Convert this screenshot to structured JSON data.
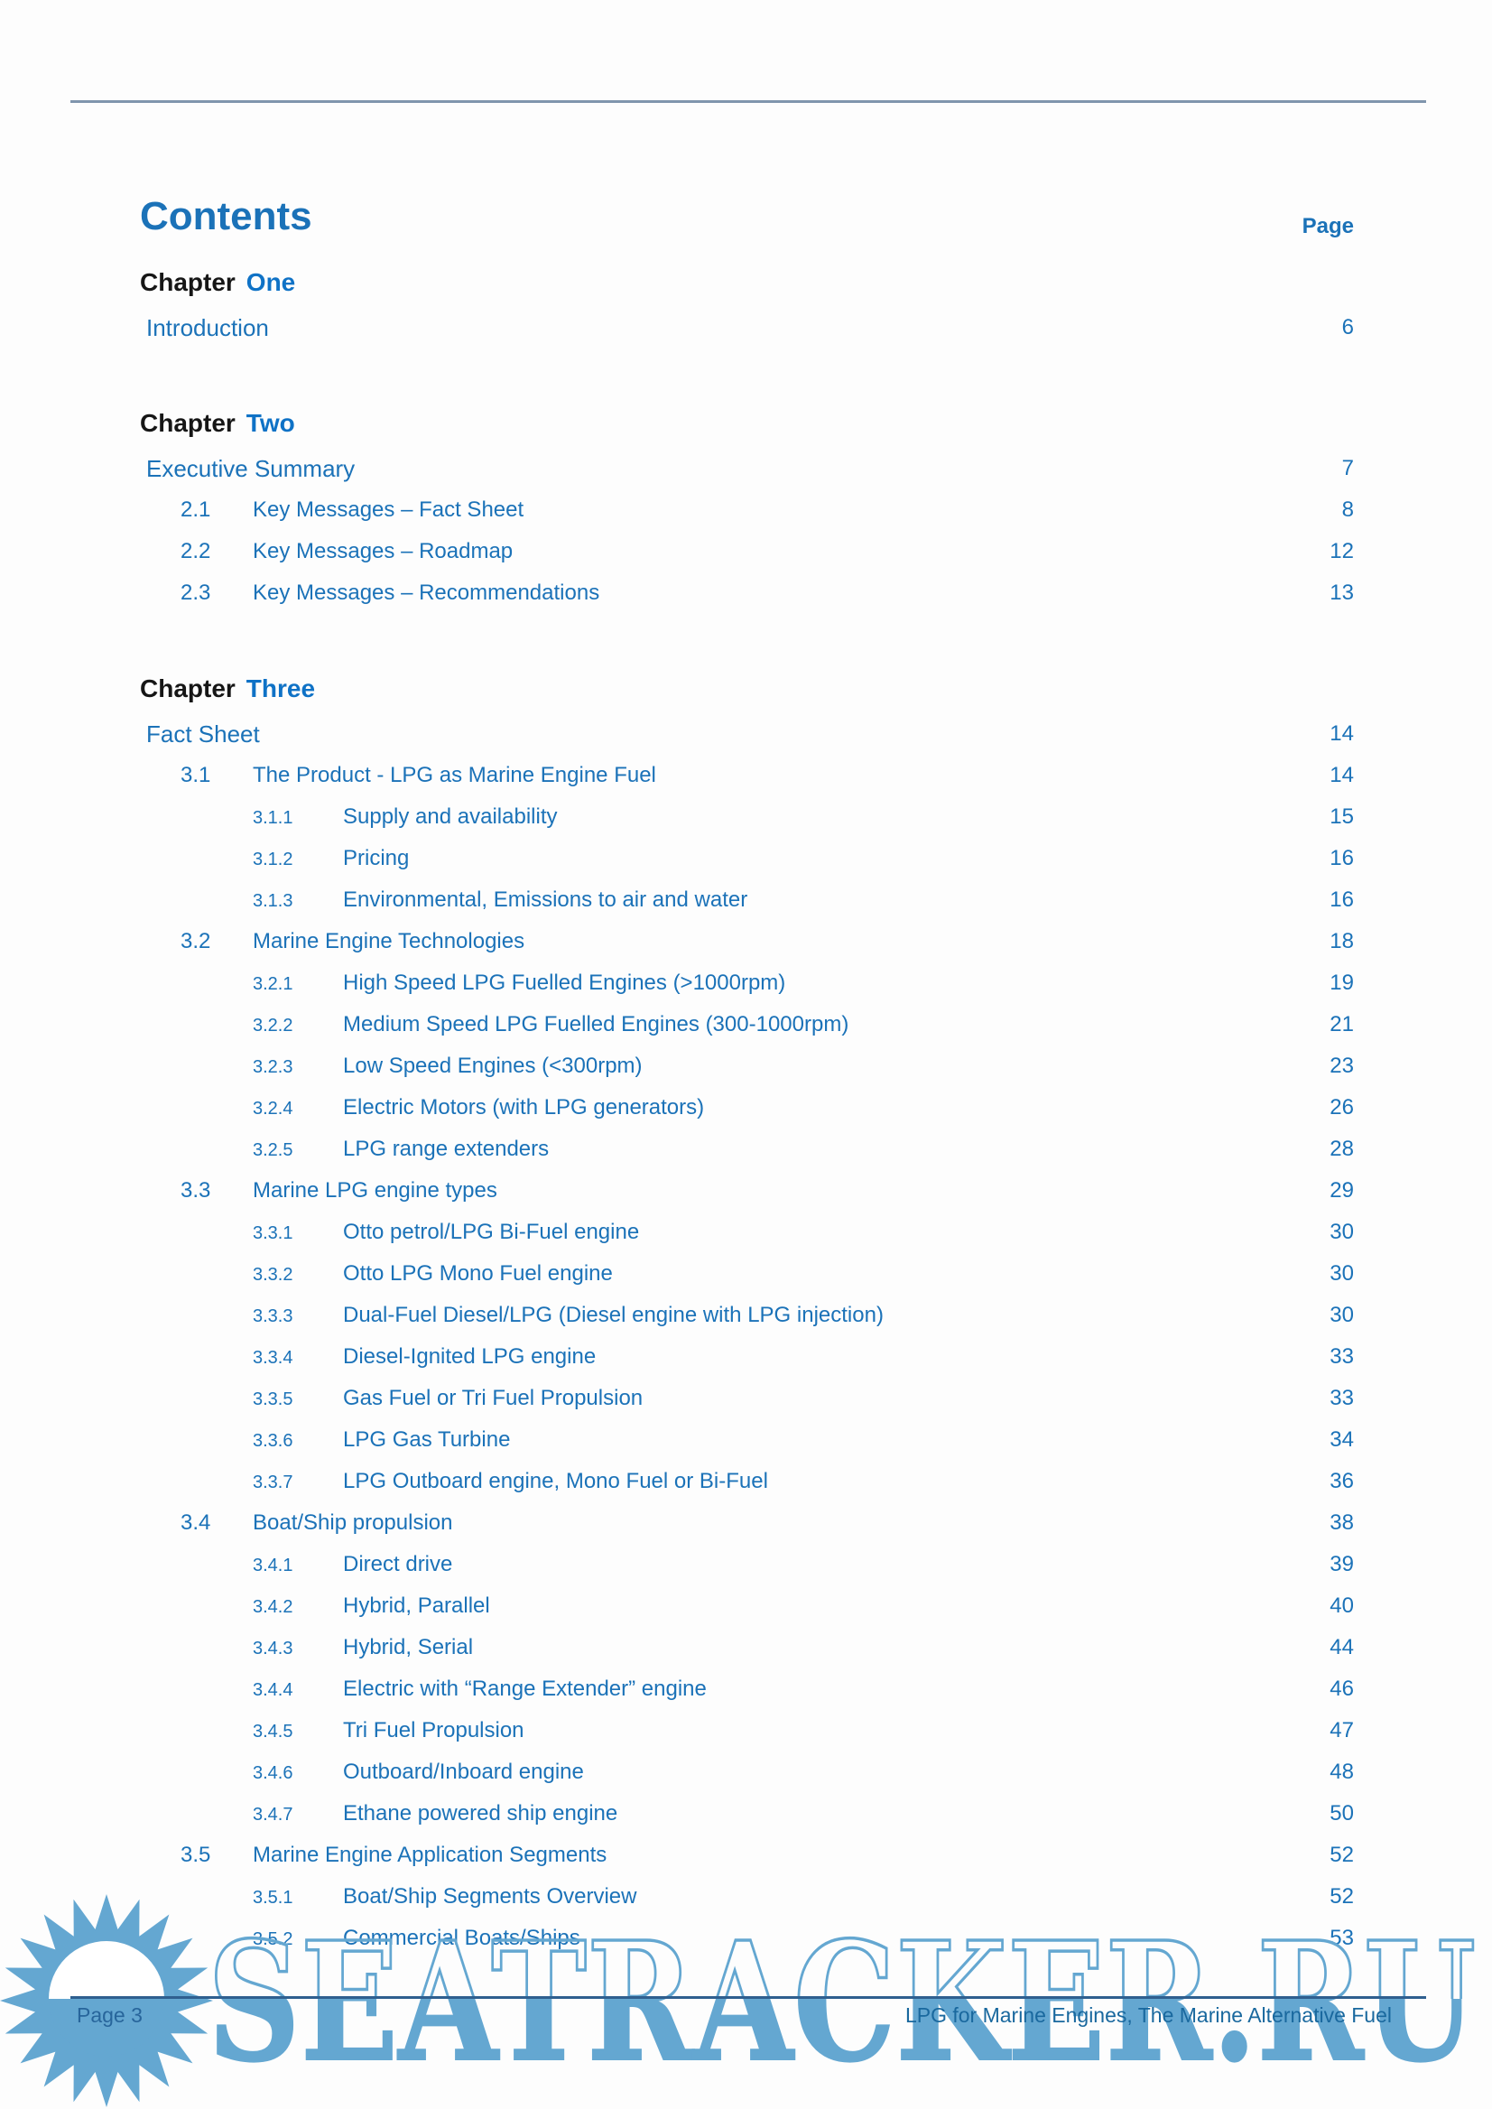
{
  "header": {
    "title": "Contents",
    "page_col_label": "Page"
  },
  "toc": [
    {
      "type": "chapter",
      "prefix": "Chapter",
      "name": "One"
    },
    {
      "type": "l1",
      "label": "Introduction",
      "page": "6"
    },
    {
      "type": "chapter",
      "prefix": "Chapter",
      "name": "Two"
    },
    {
      "type": "l1",
      "label": "Executive Summary",
      "page": "7"
    },
    {
      "type": "l2",
      "num": "2.1",
      "label": "Key Messages – Fact Sheet",
      "page": "8"
    },
    {
      "type": "l2",
      "num": "2.2",
      "label": "Key Messages – Roadmap",
      "page": "12"
    },
    {
      "type": "l2",
      "num": "2.3",
      "label": "Key Messages – Recommendations",
      "page": "13"
    },
    {
      "type": "chapter",
      "prefix": "Chapter",
      "name": "Three"
    },
    {
      "type": "l1",
      "label": "Fact Sheet",
      "page": "14"
    },
    {
      "type": "l2",
      "num": "3.1",
      "label": "The Product - LPG as Marine Engine Fuel",
      "page": "14"
    },
    {
      "type": "l3",
      "num": "3.1.1",
      "label": "Supply and availability",
      "page": "15"
    },
    {
      "type": "l3",
      "num": "3.1.2",
      "label": "Pricing",
      "page": "16"
    },
    {
      "type": "l3",
      "num": "3.1.3",
      "label": "Environmental, Emissions to air and water",
      "page": "16"
    },
    {
      "type": "l2",
      "num": "3.2",
      "label": "Marine Engine Technologies",
      "page": "18"
    },
    {
      "type": "l3",
      "num": "3.2.1",
      "label": "High Speed LPG Fuelled Engines (>1000rpm)",
      "page": "19"
    },
    {
      "type": "l3",
      "num": "3.2.2",
      "label": "Medium Speed LPG Fuelled Engines (300-1000rpm)",
      "page": "21"
    },
    {
      "type": "l3",
      "num": "3.2.3",
      "label": "Low Speed Engines (<300rpm)",
      "page": "23"
    },
    {
      "type": "l3",
      "num": "3.2.4",
      "label": "Electric Motors (with LPG generators)",
      "page": "26"
    },
    {
      "type": "l3",
      "num": "3.2.5",
      "label": "LPG range extenders",
      "page": "28"
    },
    {
      "type": "l2",
      "num": "3.3",
      "label": "Marine LPG engine types",
      "page": "29"
    },
    {
      "type": "l3",
      "num": "3.3.1",
      "label": "Otto petrol/LPG Bi-Fuel engine",
      "page": "30"
    },
    {
      "type": "l3",
      "num": "3.3.2",
      "label": "Otto LPG Mono Fuel engine",
      "page": "30"
    },
    {
      "type": "l3",
      "num": "3.3.3",
      "label": "Dual-Fuel Diesel/LPG (Diesel engine with LPG injection)",
      "page": "30"
    },
    {
      "type": "l3",
      "num": "3.3.4",
      "label": "Diesel-Ignited LPG engine",
      "page": "33"
    },
    {
      "type": "l3",
      "num": "3.3.5",
      "label": "Gas Fuel or Tri Fuel Propulsion",
      "page": "33"
    },
    {
      "type": "l3",
      "num": "3.3.6",
      "label": "LPG Gas Turbine",
      "page": "34"
    },
    {
      "type": "l3",
      "num": "3.3.7",
      "label": "LPG Outboard engine, Mono Fuel or Bi-Fuel",
      "page": "36"
    },
    {
      "type": "l2",
      "num": "3.4",
      "label": "Boat/Ship propulsion",
      "page": "38"
    },
    {
      "type": "l3",
      "num": "3.4.1",
      "label": "Direct drive",
      "page": "39"
    },
    {
      "type": "l3",
      "num": "3.4.2",
      "label": "Hybrid, Parallel",
      "page": "40"
    },
    {
      "type": "l3",
      "num": "3.4.3",
      "label": "Hybrid, Serial",
      "page": "44"
    },
    {
      "type": "l3",
      "num": "3.4.4",
      "label": "Electric with “Range Extender” engine",
      "page": "46"
    },
    {
      "type": "l3",
      "num": "3.4.5",
      "label": "Tri Fuel Propulsion",
      "page": "47"
    },
    {
      "type": "l3",
      "num": "3.4.6",
      "label": "Outboard/Inboard engine",
      "page": "48"
    },
    {
      "type": "l3",
      "num": "3.4.7",
      "label": "Ethane powered ship engine",
      "page": "50"
    },
    {
      "type": "l2",
      "num": "3.5",
      "label": "Marine Engine Application Segments",
      "page": "52"
    },
    {
      "type": "l3",
      "num": "3.5.1",
      "label": "Boat/Ship Segments Overview",
      "page": "52"
    },
    {
      "type": "l3",
      "num": "3.5.2",
      "label": "Commercial Boats/Ships",
      "page": "53"
    }
  ],
  "footer": {
    "left": "Page 3",
    "right": "LPG for Marine Engines, The Marine Alternative Fuel"
  },
  "watermark": {
    "text": "SEATRACKER.RU"
  },
  "colors": {
    "heading_blue": "#1b72b8",
    "accent_blue": "#1b72b8",
    "chapter_accent": "#0f72c6",
    "black": "#161616",
    "watermark_blue": "#64a7d1",
    "footer_line": "#2f5f8f",
    "footer_text": "#19689e",
    "top_rule": "#8095ad"
  }
}
